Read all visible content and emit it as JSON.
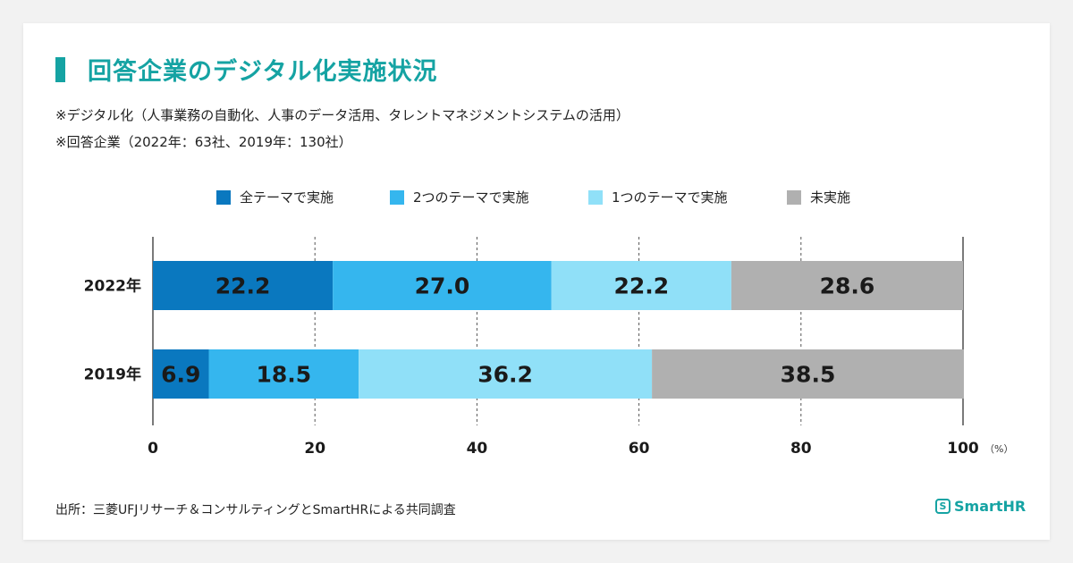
{
  "title": "回答企業のデジタル化実施状況",
  "notes": [
    "※デジタル化（人事業務の自動化、人事のデータ活用、タレントマネジメントシステムの活用）",
    "※回答企業（2022年：63社、2019年：130社）"
  ],
  "source": "出所：三菱UFJリサーチ＆コンサルティングとSmartHRによる共同調査",
  "logo": {
    "mark": "S",
    "text": "SmartHR"
  },
  "chart_data": {
    "type": "bar",
    "orientation": "horizontal",
    "stacked": true,
    "categories": [
      "2022年",
      "2019年"
    ],
    "series": [
      {
        "name": "全テーマで実施",
        "color": "#0a78bf",
        "values": [
          22.2,
          6.9
        ]
      },
      {
        "name": "2つのテーマで実施",
        "color": "#35b6ee",
        "values": [
          27.0,
          18.5
        ]
      },
      {
        "name": "1つのテーマで実施",
        "color": "#90e0f8",
        "values": [
          22.2,
          36.2
        ]
      },
      {
        "name": "未実施",
        "color": "#b0b0b0",
        "values": [
          28.6,
          38.5
        ]
      }
    ],
    "value_labels": [
      [
        "22.2",
        "6.9"
      ],
      [
        "27.0",
        "18.5"
      ],
      [
        "22.2",
        "36.2"
      ],
      [
        "28.6",
        "38.5"
      ]
    ],
    "x_ticks": [
      "0",
      "20",
      "40",
      "60",
      "80",
      "100"
    ],
    "x_unit": "（%）",
    "xlim": [
      0,
      100
    ],
    "legend_position": "top",
    "grid": "dashed vertical"
  }
}
